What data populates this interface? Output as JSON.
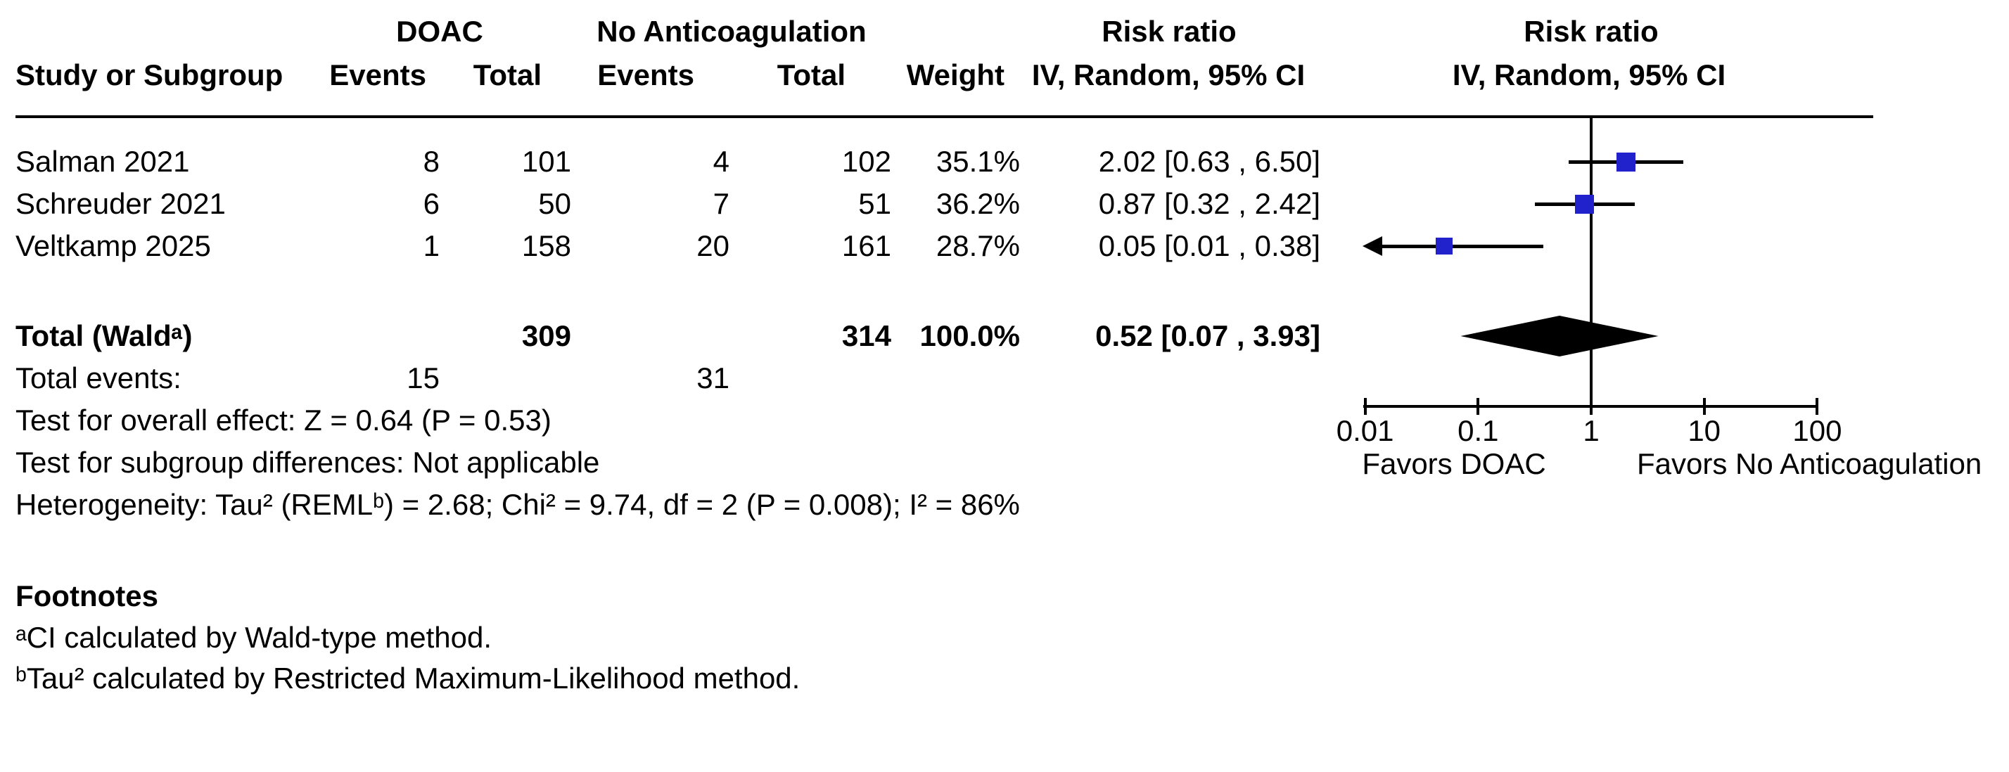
{
  "header": {
    "group1": "DOAC",
    "group2": "No Anticoagulation",
    "risk_ratio_left": "Risk ratio",
    "risk_ratio_plot": "Risk ratio",
    "method_left": "IV, Random, 95% CI",
    "method_plot": "IV, Random, 95% CI",
    "col_study": "Study or Subgroup",
    "col_events1": "Events",
    "col_total1": "Total",
    "col_events2": "Events",
    "col_total2": "Total",
    "col_weight": "Weight"
  },
  "rows": [
    {
      "study": "Salman 2021",
      "e1": "8",
      "t1": "101",
      "e2": "4",
      "t2": "102",
      "weight": "35.1%",
      "ci": "2.02 [0.63 , 6.50]"
    },
    {
      "study": "Schreuder 2021",
      "e1": "6",
      "t1": "50",
      "e2": "7",
      "t2": "51",
      "weight": "36.2%",
      "ci": "0.87 [0.32 , 2.42]"
    },
    {
      "study": "Veltkamp 2025",
      "e1": "1",
      "t1": "158",
      "e2": "20",
      "t2": "161",
      "weight": "28.7%",
      "ci": "0.05 [0.01 , 0.38]"
    }
  ],
  "total_row": {
    "label": "Total (Waldᵃ)",
    "t1": "309",
    "t2": "314",
    "weight": "100.0%",
    "ci": "0.52 [0.07 , 3.93]"
  },
  "total_events": {
    "label": "Total events:",
    "e1": "15",
    "e2": "31"
  },
  "stats": {
    "overall": "Test for overall effect: Z = 0.64 (P = 0.53)",
    "subgroup": "Test for subgroup differences: Not applicable",
    "heterogeneity": "Heterogeneity: Tau² (REMLᵇ) = 2.68; Chi² = 9.74, df = 2 (P = 0.008); I² = 86%"
  },
  "footnotes": {
    "title": "Footnotes",
    "a": "ᵃCI calculated by Wald-type method.",
    "b": "ᵇTau² calculated by Restricted Maximum-Likelihood method."
  },
  "axis": {
    "favors_left": "Favors DOAC",
    "favors_right": "Favors No Anticoagulation"
  },
  "chart_data": {
    "type": "forest",
    "title": "Risk ratio",
    "method": "IV, Random, 95% CI",
    "x_axis": {
      "scale": "log",
      "ticks": [
        0.01,
        0.1,
        1,
        10,
        100
      ],
      "tick_labels": [
        "0.01",
        "0.1",
        "1",
        "10",
        "100"
      ],
      "min": 0.01,
      "max": 100
    },
    "favors": {
      "left": "Favors DOAC",
      "right": "Favors No Anticoagulation"
    },
    "marker_color": "#2222CC",
    "studies": [
      {
        "name": "Salman 2021",
        "doac_events": 8,
        "doac_total": 101,
        "control_events": 4,
        "control_total": 102,
        "weight_pct": 35.1,
        "estimate": 2.02,
        "ci_low": 0.63,
        "ci_high": 6.5,
        "arrow_low": false
      },
      {
        "name": "Schreuder 2021",
        "doac_events": 6,
        "doac_total": 50,
        "control_events": 7,
        "control_total": 51,
        "weight_pct": 36.2,
        "estimate": 0.87,
        "ci_low": 0.32,
        "ci_high": 2.42,
        "arrow_low": false
      },
      {
        "name": "Veltkamp 2025",
        "doac_events": 1,
        "doac_total": 158,
        "control_events": 20,
        "control_total": 161,
        "weight_pct": 28.7,
        "estimate": 0.05,
        "ci_low": 0.01,
        "ci_high": 0.38,
        "arrow_low": true
      }
    ],
    "total": {
      "label": "Total (Waldᵃ)",
      "doac_total": 309,
      "control_total": 314,
      "doac_events": 15,
      "control_events": 31,
      "weight_pct": 100.0,
      "estimate": 0.52,
      "ci_low": 0.07,
      "ci_high": 3.93,
      "overall_effect": "Z = 0.64 (P = 0.53)",
      "tau2": 2.68,
      "chi2": 9.74,
      "df": 2,
      "p_heterogeneity": 0.008,
      "i2_pct": 86
    }
  }
}
